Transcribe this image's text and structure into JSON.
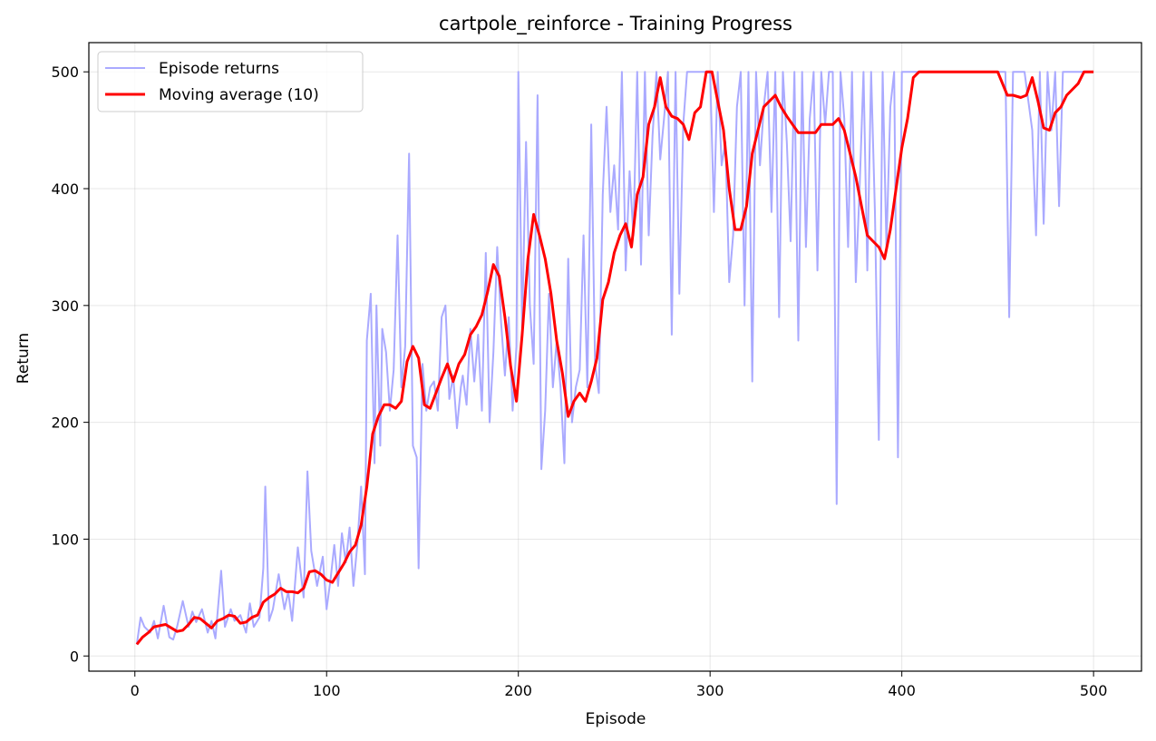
{
  "chart_data": {
    "type": "line",
    "title": "cartpole_reinforce - Training Progress",
    "xlabel": "Episode",
    "ylabel": "Return",
    "xlim": [
      -24,
      525
    ],
    "ylim": [
      -13,
      525
    ],
    "xticks": [
      0,
      100,
      200,
      300,
      400,
      500
    ],
    "yticks": [
      0,
      100,
      200,
      300,
      400,
      500
    ],
    "grid": true,
    "legend": "top-left",
    "colors": {
      "returns": "#aaaaff",
      "moving_average": "#ff0000"
    },
    "series": [
      {
        "name": "Episode returns",
        "x": [
          1,
          3,
          5,
          8,
          10,
          12,
          15,
          18,
          20,
          22,
          25,
          28,
          30,
          32,
          35,
          38,
          40,
          42,
          45,
          47,
          50,
          52,
          55,
          58,
          60,
          62,
          65,
          67,
          68,
          70,
          72,
          75,
          78,
          80,
          82,
          85,
          88,
          90,
          92,
          95,
          98,
          100,
          102,
          104,
          106,
          108,
          110,
          112,
          114,
          116,
          118,
          120,
          121,
          123,
          125,
          126,
          128,
          129,
          131,
          133,
          135,
          137,
          139,
          141,
          143,
          145,
          147,
          148,
          150,
          152,
          154,
          156,
          158,
          160,
          162,
          164,
          166,
          168,
          170,
          171,
          173,
          175,
          177,
          179,
          181,
          183,
          185,
          187,
          189,
          191,
          193,
          195,
          197,
          199,
          200,
          202,
          204,
          206,
          208,
          210,
          212,
          214,
          216,
          218,
          220,
          222,
          224,
          226,
          228,
          230,
          232,
          234,
          236,
          238,
          240,
          242,
          244,
          246,
          248,
          250,
          252,
          254,
          256,
          258,
          260,
          262,
          264,
          266,
          268,
          270,
          272,
          274,
          276,
          278,
          280,
          282,
          284,
          286,
          288,
          290,
          292,
          294,
          296,
          298,
          300,
          302,
          304,
          306,
          308,
          310,
          312,
          314,
          316,
          318,
          320,
          322,
          324,
          326,
          328,
          330,
          332,
          334,
          336,
          338,
          340,
          342,
          344,
          346,
          348,
          350,
          352,
          354,
          356,
          358,
          360,
          362,
          364,
          366,
          368,
          370,
          372,
          374,
          376,
          378,
          380,
          382,
          384,
          386,
          388,
          390,
          392,
          394,
          396,
          398,
          400,
          402,
          404,
          406,
          408,
          410,
          420,
          430,
          440,
          450,
          454,
          456,
          458,
          460,
          462,
          464,
          466,
          468,
          470,
          472,
          474,
          476,
          478,
          480,
          482,
          484,
          486,
          488,
          490,
          495,
          500
        ],
        "y": [
          10,
          33,
          25,
          20,
          30,
          15,
          43,
          16,
          14,
          25,
          47,
          25,
          38,
          29,
          40,
          20,
          30,
          15,
          73,
          25,
          40,
          30,
          35,
          20,
          45,
          25,
          33,
          75,
          145,
          30,
          40,
          70,
          40,
          55,
          30,
          93,
          50,
          158,
          90,
          60,
          85,
          40,
          65,
          95,
          60,
          105,
          80,
          110,
          60,
          95,
          145,
          70,
          270,
          310,
          165,
          300,
          180,
          280,
          260,
          210,
          245,
          360,
          230,
          265,
          430,
          180,
          170,
          75,
          250,
          210,
          230,
          235,
          210,
          290,
          300,
          220,
          240,
          195,
          230,
          240,
          215,
          280,
          235,
          275,
          210,
          345,
          200,
          260,
          350,
          285,
          240,
          290,
          210,
          265,
          500,
          280,
          440,
          300,
          250,
          480,
          160,
          210,
          310,
          230,
          270,
          230,
          165,
          340,
          200,
          230,
          245,
          360,
          230,
          455,
          250,
          225,
          395,
          470,
          380,
          420,
          365,
          500,
          330,
          415,
          360,
          500,
          335,
          500,
          360,
          445,
          500,
          425,
          460,
          500,
          275,
          500,
          310,
          455,
          500,
          500,
          500,
          500,
          500,
          500,
          500,
          380,
          500,
          420,
          440,
          320,
          360,
          470,
          500,
          300,
          500,
          235,
          500,
          420,
          470,
          500,
          380,
          500,
          290,
          500,
          440,
          355,
          500,
          270,
          500,
          350,
          460,
          500,
          330,
          500,
          455,
          500,
          500,
          130,
          500,
          460,
          350,
          500,
          320,
          400,
          500,
          330,
          500,
          380,
          185,
          500,
          350,
          470,
          500,
          170,
          500,
          500,
          500,
          500,
          500,
          500,
          500,
          500,
          500,
          500,
          500,
          290,
          500,
          500,
          500,
          500,
          475,
          450,
          360,
          500,
          370,
          500,
          450,
          500,
          385,
          500,
          500,
          500,
          500,
          500,
          500
        ],
        "color": "#aaaaff"
      },
      {
        "name": "Moving average (10)",
        "x": [
          1,
          4,
          7,
          10,
          13,
          16,
          19,
          22,
          25,
          28,
          31,
          34,
          37,
          40,
          43,
          46,
          49,
          52,
          55,
          58,
          61,
          64,
          67,
          70,
          73,
          76,
          79,
          82,
          85,
          88,
          91,
          94,
          97,
          100,
          103,
          106,
          109,
          112,
          115,
          118,
          121,
          124,
          127,
          130,
          133,
          136,
          139,
          142,
          145,
          148,
          151,
          154,
          157,
          160,
          163,
          166,
          169,
          172,
          175,
          178,
          181,
          184,
          187,
          190,
          193,
          196,
          199,
          202,
          205,
          208,
          211,
          214,
          217,
          220,
          223,
          226,
          229,
          232,
          235,
          238,
          241,
          244,
          247,
          250,
          253,
          256,
          259,
          262,
          265,
          268,
          271,
          274,
          277,
          280,
          283,
          286,
          289,
          292,
          295,
          298,
          301,
          304,
          307,
          310,
          313,
          316,
          319,
          322,
          325,
          328,
          331,
          334,
          337,
          340,
          343,
          346,
          349,
          352,
          355,
          358,
          361,
          364,
          367,
          370,
          373,
          376,
          379,
          382,
          385,
          388,
          391,
          394,
          397,
          400,
          403,
          406,
          409,
          412,
          415,
          420,
          430,
          440,
          450,
          455,
          458,
          462,
          465,
          468,
          471,
          474,
          477,
          480,
          483,
          486,
          489,
          492,
          495,
          500
        ],
        "y": [
          10,
          16,
          20,
          25,
          26,
          27,
          24,
          21,
          22,
          27,
          33,
          32,
          28,
          24,
          30,
          32,
          35,
          34,
          28,
          29,
          33,
          35,
          46,
          50,
          53,
          58,
          55,
          55,
          54,
          58,
          72,
          73,
          70,
          65,
          63,
          71,
          79,
          89,
          95,
          112,
          145,
          190,
          205,
          215,
          215,
          212,
          218,
          252,
          265,
          255,
          215,
          212,
          225,
          238,
          250,
          235,
          250,
          258,
          275,
          282,
          292,
          312,
          335,
          325,
          290,
          248,
          218,
          275,
          340,
          378,
          360,
          340,
          310,
          270,
          242,
          205,
          218,
          225,
          218,
          235,
          255,
          305,
          320,
          345,
          360,
          370,
          350,
          395,
          410,
          455,
          470,
          495,
          470,
          462,
          460,
          455,
          442,
          465,
          470,
          500,
          500,
          475,
          450,
          400,
          365,
          365,
          385,
          430,
          450,
          470,
          475,
          480,
          470,
          462,
          455,
          448,
          448,
          448,
          448,
          455,
          455,
          455,
          460,
          450,
          430,
          410,
          385,
          360,
          355,
          350,
          340,
          365,
          400,
          435,
          460,
          495,
          500,
          500,
          500,
          500,
          500,
          500,
          500,
          480,
          480,
          478,
          480,
          495,
          475,
          452,
          450,
          465,
          470,
          480,
          485,
          490,
          500,
          500
        ],
        "color": "#ff0000"
      }
    ]
  }
}
